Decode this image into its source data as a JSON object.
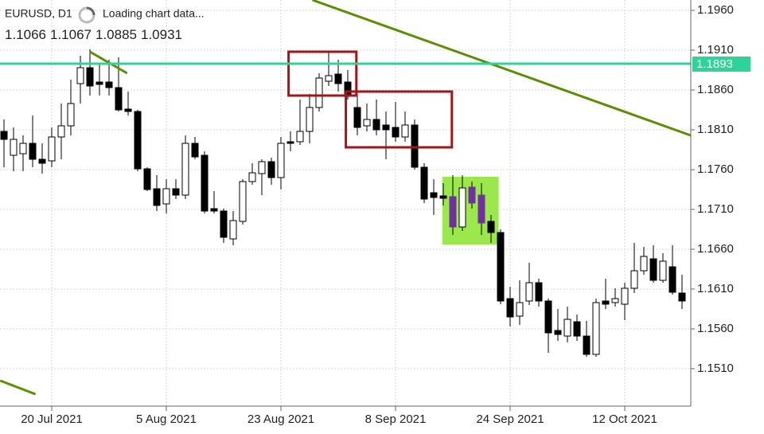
{
  "chart_data": {
    "type": "candlestick",
    "symbol": "EURUSD, D1",
    "status": "Loading chart data...",
    "header_ohlc": [
      1.1066,
      1.1067,
      1.0885,
      1.0931
    ],
    "categories": [
      null,
      null,
      null,
      null,
      null,
      "20 Jul 2021",
      null,
      null,
      null,
      null,
      null,
      null,
      null,
      null,
      null,
      null,
      null,
      "5 Aug 2021",
      null,
      null,
      null,
      null,
      null,
      null,
      null,
      null,
      null,
      null,
      null,
      "23 Aug 2021",
      null,
      null,
      null,
      null,
      null,
      null,
      null,
      null,
      null,
      null,
      null,
      "8 Sep 2021",
      null,
      null,
      null,
      null,
      null,
      null,
      null,
      null,
      null,
      null,
      null,
      "24 Sep 2021",
      null,
      null,
      null,
      null,
      null,
      null,
      null,
      null,
      null,
      null,
      null,
      "12 Oct 2021",
      null,
      null,
      null,
      null,
      null,
      null
    ],
    "open": [
      1.1808,
      1.1778,
      1.178,
      1.1793,
      1.1773,
      1.1771,
      1.1801,
      1.1815,
      1.1868,
      1.1888,
      1.187,
      1.187,
      1.1863,
      1.1836,
      1.1833,
      1.1761,
      1.1736,
      1.1717,
      1.1736,
      1.1728,
      1.1793,
      1.1778,
      1.1711,
      1.1708,
      1.1673,
      1.1695,
      1.1745,
      1.1755,
      1.177,
      1.175,
      1.1795,
      1.1795,
      1.1808,
      1.1838,
      1.1871,
      1.188,
      1.187,
      1.1838,
      1.1815,
      1.1823,
      1.1816,
      1.1813,
      1.1801,
      1.1816,
      1.1763,
      1.1731,
      1.1727,
      1.1726,
      1.1688,
      1.1738,
      1.1728,
      1.1695,
      1.1681,
      1.1598,
      1.1576,
      1.1595,
      1.1618,
      1.1595,
      1.1558,
      1.1551,
      1.1569,
      1.1551,
      1.1528,
      1.1595,
      1.1593,
      1.1591,
      1.1611,
      1.1633,
      1.1648,
      1.1621,
      1.1638,
      1.1605
    ],
    "high": [
      1.1823,
      1.1813,
      1.1803,
      1.1828,
      1.1793,
      1.1813,
      1.1843,
      1.1873,
      1.1903,
      1.1911,
      1.1893,
      1.1898,
      1.1901,
      1.1858,
      1.1835,
      1.1763,
      1.1753,
      1.1748,
      1.1748,
      1.1803,
      1.1801,
      1.1783,
      1.1733,
      1.1711,
      1.1708,
      1.1748,
      1.1768,
      1.1773,
      1.1775,
      1.1801,
      1.1808,
      1.1848,
      1.1855,
      1.1881,
      1.1908,
      1.1898,
      1.1885,
      1.1855,
      1.1843,
      1.1848,
      1.1833,
      1.1845,
      1.1833,
      1.1823,
      1.1768,
      1.1748,
      1.1743,
      1.1753,
      1.1753,
      1.1745,
      1.1743,
      1.1703,
      1.1685,
      1.1613,
      1.1621,
      1.1643,
      1.1623,
      1.1598,
      1.1585,
      1.1588,
      1.1578,
      1.157,
      1.1598,
      1.1623,
      1.1611,
      1.1618,
      1.1668,
      1.1663,
      1.1665,
      1.1655,
      1.1665,
      1.1628
    ],
    "low": [
      1.1763,
      1.1758,
      1.1758,
      1.1763,
      1.1755,
      1.1763,
      1.1773,
      1.1803,
      1.1843,
      1.1853,
      1.1853,
      1.1853,
      1.1833,
      1.1828,
      1.1758,
      1.1733,
      1.1708,
      1.1705,
      1.1723,
      1.1723,
      1.1773,
      1.1705,
      1.1705,
      1.1668,
      1.1665,
      1.1691,
      1.1741,
      1.1728,
      1.1741,
      1.1735,
      1.1783,
      1.1791,
      1.1793,
      1.1833,
      1.1865,
      1.1858,
      1.1848,
      1.1803,
      1.1808,
      1.1803,
      1.1773,
      1.1795,
      1.1795,
      1.176,
      1.1718,
      1.1703,
      1.1715,
      1.1678,
      1.1683,
      1.1711,
      1.1678,
      1.1668,
      1.1591,
      1.1563,
      1.1565,
      1.159,
      1.1588,
      1.153,
      1.1545,
      1.1543,
      1.1545,
      1.1525,
      1.1525,
      1.1585,
      1.1588,
      1.1571,
      1.1605,
      1.1628,
      1.1618,
      1.1618,
      1.1603,
      1.1585
    ],
    "close": [
      1.1798,
      1.1798,
      1.1793,
      1.1773,
      1.1768,
      1.1801,
      1.1815,
      1.1843,
      1.1888,
      1.1865,
      1.1867,
      1.1863,
      1.1835,
      1.1833,
      1.1761,
      1.1735,
      1.1715,
      1.1736,
      1.1728,
      1.1793,
      1.1776,
      1.1708,
      1.1708,
      1.1675,
      1.1696,
      1.1745,
      1.1756,
      1.177,
      1.175,
      1.1793,
      1.1793,
      1.1808,
      1.1838,
      1.1875,
      1.1878,
      1.1868,
      1.1855,
      1.1813,
      1.1823,
      1.181,
      1.181,
      1.1801,
      1.1816,
      1.1763,
      1.1723,
      1.1725,
      1.1724,
      1.1688,
      1.1737,
      1.1718,
      1.1693,
      1.1681,
      1.1595,
      1.1575,
      1.1593,
      1.1618,
      1.1595,
      1.1555,
      1.1553,
      1.1572,
      1.1551,
      1.1528,
      1.1593,
      1.1591,
      1.1598,
      1.1611,
      1.1633,
      1.1651,
      1.1621,
      1.1645,
      1.1606,
      1.1595
    ],
    "up_color": "#ffffff",
    "down_color": "#000000",
    "highlight_color": "#7030a0",
    "highlighted": [
      47,
      49,
      50
    ],
    "ylim": [
      1.1463,
      1.1973
    ],
    "yticks": [
      {
        "value": 1.196,
        "label": "1.1960"
      },
      {
        "value": 1.191,
        "label": "1.1910"
      },
      {
        "value": 1.186,
        "label": "1.1860"
      },
      {
        "value": 1.181,
        "label": "1.1810"
      },
      {
        "value": 1.176,
        "label": "1.1760"
      },
      {
        "value": 1.171,
        "label": "1.1710"
      },
      {
        "value": 1.166,
        "label": "1.1660"
      },
      {
        "value": 1.161,
        "label": "1.1610"
      },
      {
        "value": 1.156,
        "label": "1.1560"
      },
      {
        "value": 1.151,
        "label": "1.1510"
      }
    ],
    "grid": true,
    "price_line": {
      "value": 1.1893,
      "color": "#2ed39a"
    },
    "trendlines": [
      {
        "color": "#5a8f00",
        "points": [
          [
            32.3,
            1.1973
          ],
          [
            71.9,
            1.1803
          ]
        ]
      },
      {
        "color": "#5a8f00",
        "points": [
          [
            9.0,
            1.1908
          ],
          [
            12.9,
            1.1881
          ]
        ]
      },
      {
        "color": "#5a8f00",
        "points": [
          [
            -0.4,
            1.1495
          ],
          [
            3.3,
            1.1478
          ]
        ]
      }
    ],
    "rectangles": [
      {
        "stroke": "#a0161b",
        "fill": "none",
        "x": [
          29.8,
          36.9
        ],
        "y": [
          1.1908,
          1.1853
        ]
      },
      {
        "stroke": "#a0161b",
        "fill": "none",
        "x": [
          35.8,
          46.9
        ],
        "y": [
          1.1858,
          1.1788
        ]
      },
      {
        "stroke": "none",
        "fill": "#9be84d",
        "x": [
          45.9,
          51.8
        ],
        "y": [
          1.1751,
          1.1666
        ]
      }
    ]
  }
}
